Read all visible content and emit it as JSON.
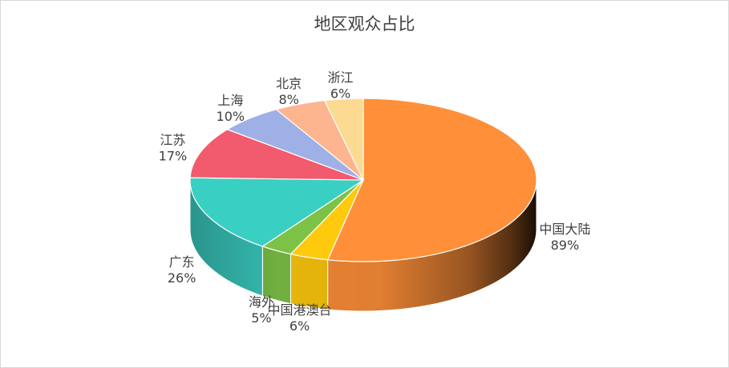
{
  "chart_data": {
    "type": "pie",
    "title": "地区观众占比",
    "style": "3d-exploded-none",
    "categories": [
      "中国大陆",
      "中国港澳台",
      "海外",
      "广东",
      "江苏",
      "上海",
      "北京",
      "浙江"
    ],
    "values": [
      89,
      6,
      5,
      26,
      17,
      10,
      8,
      6
    ],
    "value_labels": [
      "89%",
      "6%",
      "5%",
      "26%",
      "17%",
      "10%",
      "8%",
      "6%"
    ],
    "colors": [
      "#FF8F38",
      "#FFC90E",
      "#7CC247",
      "#3ACFC3",
      "#F25A6E",
      "#9EB0E6",
      "#FDB590",
      "#FDDA92"
    ],
    "legend": "none"
  }
}
